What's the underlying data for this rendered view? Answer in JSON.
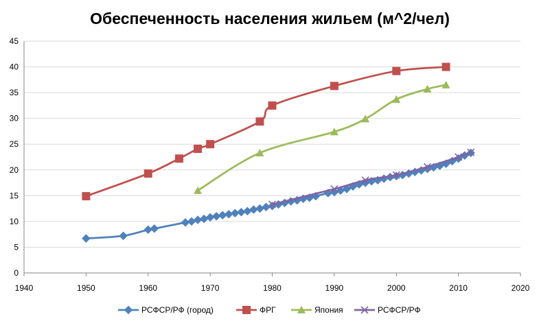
{
  "chart_data": {
    "type": "scatter",
    "title": "Обеспеченность населения жильем (м^2/чел)",
    "xlim": [
      1940,
      2020
    ],
    "ylim": [
      0,
      45
    ],
    "x_ticks": [
      1940,
      1950,
      1960,
      1970,
      1980,
      1990,
      2000,
      2010,
      2020
    ],
    "y_ticks": [
      0,
      5,
      10,
      15,
      20,
      25,
      30,
      35,
      40,
      45
    ],
    "grid": "horizontal",
    "legend_position": "bottom",
    "series": [
      {
        "name": "РСФСР/РФ (город)",
        "color": "#4f81bd",
        "marker": "diamond",
        "x": [
          1950,
          1956,
          1960,
          1961,
          1966,
          1967,
          1968,
          1969,
          1970,
          1971,
          1972,
          1973,
          1974,
          1975,
          1976,
          1977,
          1978,
          1979,
          1980,
          1981,
          1982,
          1983,
          1984,
          1985,
          1986,
          1987,
          1989,
          1990,
          1991,
          1992,
          1993,
          1994,
          1995,
          1996,
          1997,
          1998,
          1999,
          2000,
          2001,
          2002,
          2003,
          2004,
          2005,
          2006,
          2007,
          2008,
          2009,
          2010,
          2011,
          2012
        ],
        "y": [
          6.7,
          7.2,
          8.4,
          8.6,
          9.8,
          10.0,
          10.3,
          10.5,
          10.8,
          11.0,
          11.2,
          11.4,
          11.6,
          11.8,
          12.0,
          12.3,
          12.5,
          12.8,
          13.0,
          13.3,
          13.6,
          13.9,
          14.1,
          14.4,
          14.6,
          14.9,
          15.5,
          15.7,
          16.0,
          16.3,
          16.8,
          17.2,
          17.5,
          17.8,
          18.0,
          18.3,
          18.6,
          18.8,
          19.0,
          19.3,
          19.6,
          19.9,
          20.2,
          20.5,
          20.8,
          21.2,
          21.7,
          22.2,
          22.8,
          23.3
        ]
      },
      {
        "name": "ФРГ",
        "color": "#c0504d",
        "marker": "square",
        "x": [
          1950,
          1960,
          1965,
          1968,
          1970,
          1978,
          1980,
          1990,
          2000,
          2008
        ],
        "y": [
          14.9,
          19.3,
          22.2,
          24.1,
          25.0,
          29.4,
          32.5,
          36.3,
          39.2,
          40.0
        ]
      },
      {
        "name": "Япония",
        "color": "#9bbb59",
        "marker": "triangle",
        "x": [
          1968,
          1978,
          1990,
          1995,
          2000,
          2005,
          2008
        ],
        "y": [
          16.0,
          23.3,
          27.4,
          29.9,
          33.7,
          35.7,
          36.5
        ]
      },
      {
        "name": "РСФСР/РФ",
        "color": "#8064a2",
        "marker": "x",
        "x": [
          1980,
          1990,
          1995,
          2000,
          2005,
          2010,
          2012
        ],
        "y": [
          13.3,
          16.3,
          18.0,
          19.0,
          20.6,
          22.5,
          23.4
        ]
      }
    ]
  }
}
